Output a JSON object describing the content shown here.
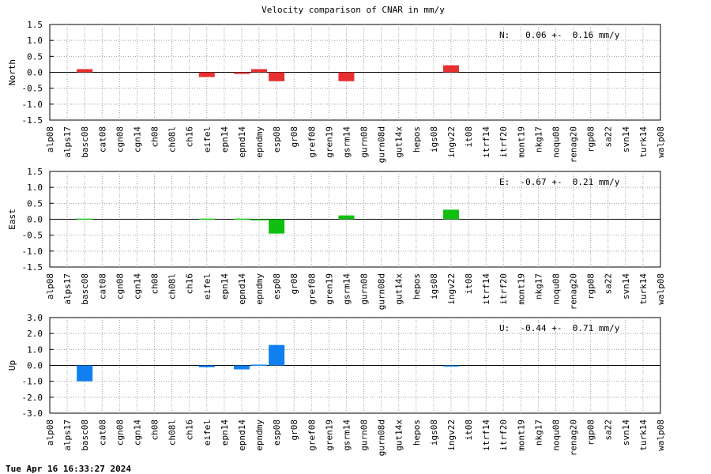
{
  "title": "Velocity comparison of CNAR in mm/y",
  "timestamp": "Tue Apr 16 16:33:27 2024",
  "chart_data": {
    "type": "bar",
    "title": "Velocity comparison of CNAR in mm/y",
    "categories": [
      "alp08",
      "alps17",
      "basc08",
      "cat08",
      "cgn08",
      "cgn14",
      "ch08",
      "ch08l",
      "ch16",
      "eifel",
      "epn14",
      "epnd14",
      "epndmy",
      "esp08",
      "gr08",
      "gref08",
      "gren19",
      "gsrm14",
      "gurn08",
      "gurn08d",
      "gut14x",
      "hepos",
      "igs08",
      "ingv22",
      "it08",
      "itrf14",
      "itrf20",
      "mont19",
      "nkg17",
      "noqu08",
      "renag20",
      "rgp08",
      "sa22",
      "svn14",
      "turk14",
      "walp08"
    ],
    "grid": true,
    "panels": [
      {
        "id": "north",
        "ylabel": "North",
        "color": "#e83030",
        "ylim": [
          -1.5,
          1.5
        ],
        "yticks": [
          "1.5",
          "1.0",
          "0.5",
          "0.0",
          "-0.5",
          "-1.0",
          "-1.5"
        ],
        "annotation": "N:   0.06 +-  0.16 mm/y",
        "values": [
          0,
          0,
          0.1,
          0,
          0,
          0,
          0,
          0,
          0,
          -0.15,
          0,
          -0.05,
          0.1,
          -0.28,
          0,
          0,
          0,
          -0.28,
          0,
          0,
          0,
          0,
          0,
          0.22,
          0,
          0,
          0,
          0,
          0,
          0,
          0,
          0,
          0,
          0,
          0,
          0
        ]
      },
      {
        "id": "east",
        "ylabel": "East",
        "color": "#10c010",
        "ylim": [
          -1.5,
          1.5
        ],
        "yticks": [
          "1.5",
          "1.0",
          "0.5",
          "0.0",
          "-0.5",
          "-1.0",
          "-1.5"
        ],
        "annotation": "E:  -0.67 +-  0.21 mm/y",
        "values": [
          0,
          0,
          0.02,
          0,
          0,
          0,
          0,
          0,
          0,
          0.02,
          0,
          0.02,
          -0.02,
          -0.45,
          0,
          0,
          0,
          0.12,
          0,
          0,
          0,
          0,
          0,
          0.3,
          0,
          0,
          0,
          0,
          0,
          0,
          0,
          0,
          0,
          0,
          0,
          0
        ]
      },
      {
        "id": "up",
        "ylabel": "Up",
        "color": "#1080f0",
        "ylim": [
          -3,
          3
        ],
        "yticks": [
          "3.0",
          "2.0",
          "1.0",
          "0.0",
          "-1.0",
          "-2.0",
          "-3.0"
        ],
        "annotation": "U:  -0.44 +-  0.71 mm/y",
        "values": [
          0,
          0,
          -1.0,
          0,
          0,
          0,
          0,
          0,
          0,
          -0.12,
          0,
          -0.25,
          0.05,
          1.28,
          0,
          0,
          0,
          0,
          0,
          0,
          0,
          0,
          0,
          -0.05,
          0,
          0,
          0,
          0,
          0,
          0,
          0,
          0,
          0,
          0,
          0,
          0
        ]
      }
    ]
  }
}
